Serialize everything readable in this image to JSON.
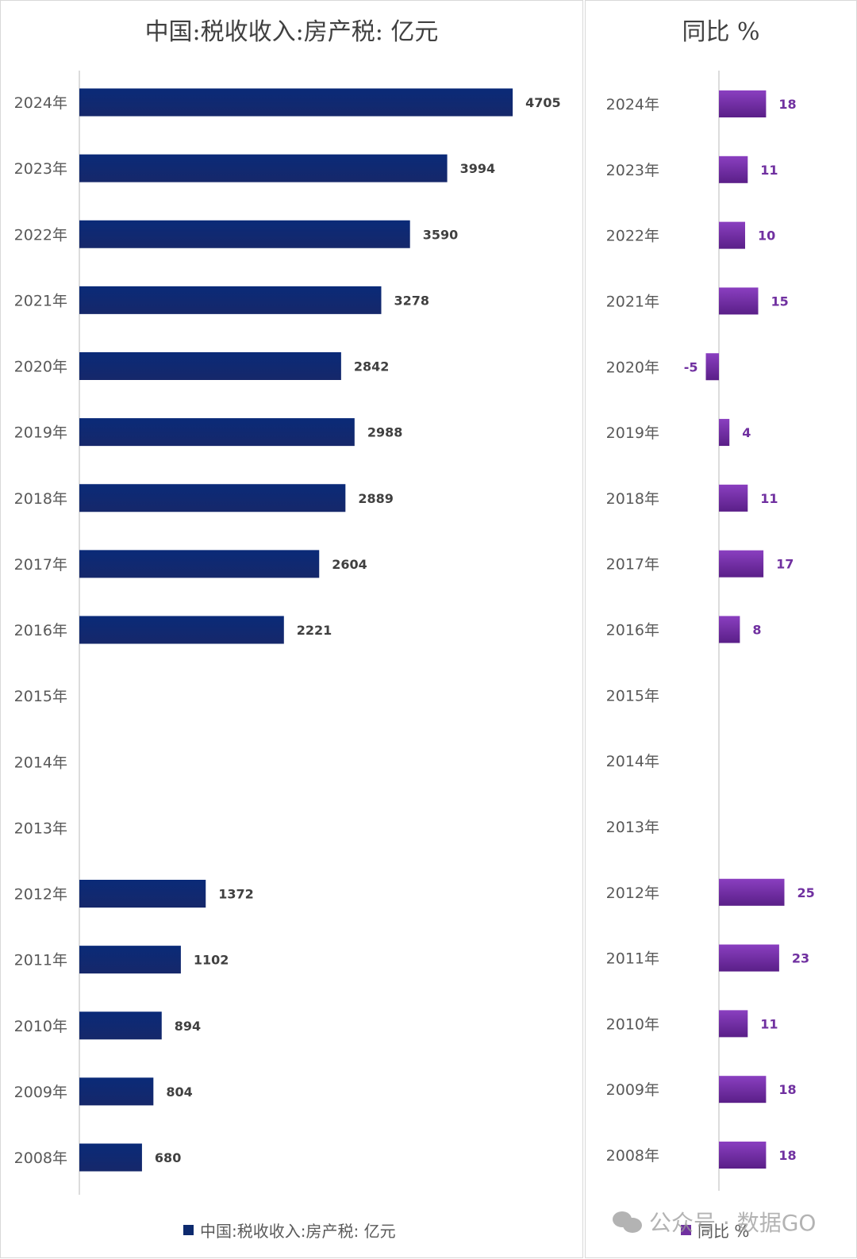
{
  "chart_data": [
    {
      "type": "bar",
      "orientation": "horizontal",
      "title": "中国:税收收入:房产税: 亿元",
      "categories": [
        "2024年",
        "2023年",
        "2022年",
        "2021年",
        "2020年",
        "2019年",
        "2018年",
        "2017年",
        "2016年",
        "2015年",
        "2014年",
        "2013年",
        "2012年",
        "2011年",
        "2010年",
        "2009年",
        "2008年"
      ],
      "series": [
        {
          "name": "中国:税收收入:房产税: 亿元",
          "values": [
            4705,
            3994,
            3590,
            3278,
            2842,
            2988,
            2889,
            2604,
            2221,
            null,
            null,
            null,
            1372,
            1102,
            894,
            804,
            680
          ]
        }
      ],
      "xlim": [
        0,
        5600
      ],
      "legend": "bottom",
      "grid": false,
      "color": "#0d2a6e"
    },
    {
      "type": "bar",
      "orientation": "horizontal",
      "title": "同比 %",
      "categories": [
        "2024年",
        "2023年",
        "2022年",
        "2021年",
        "2020年",
        "2019年",
        "2018年",
        "2017年",
        "2016年",
        "2015年",
        "2014年",
        "2013年",
        "2012年",
        "2011年",
        "2010年",
        "2009年",
        "2008年"
      ],
      "series": [
        {
          "name": "同比 %",
          "values": [
            18,
            11,
            10,
            15,
            -5,
            4,
            11,
            17,
            8,
            null,
            null,
            null,
            25,
            23,
            11,
            18,
            18
          ]
        }
      ],
      "xlim": [
        -10,
        40
      ],
      "legend": "bottom",
      "grid": false,
      "color": "#7030a0"
    }
  ],
  "watermark": "公众号 · 数据GO"
}
